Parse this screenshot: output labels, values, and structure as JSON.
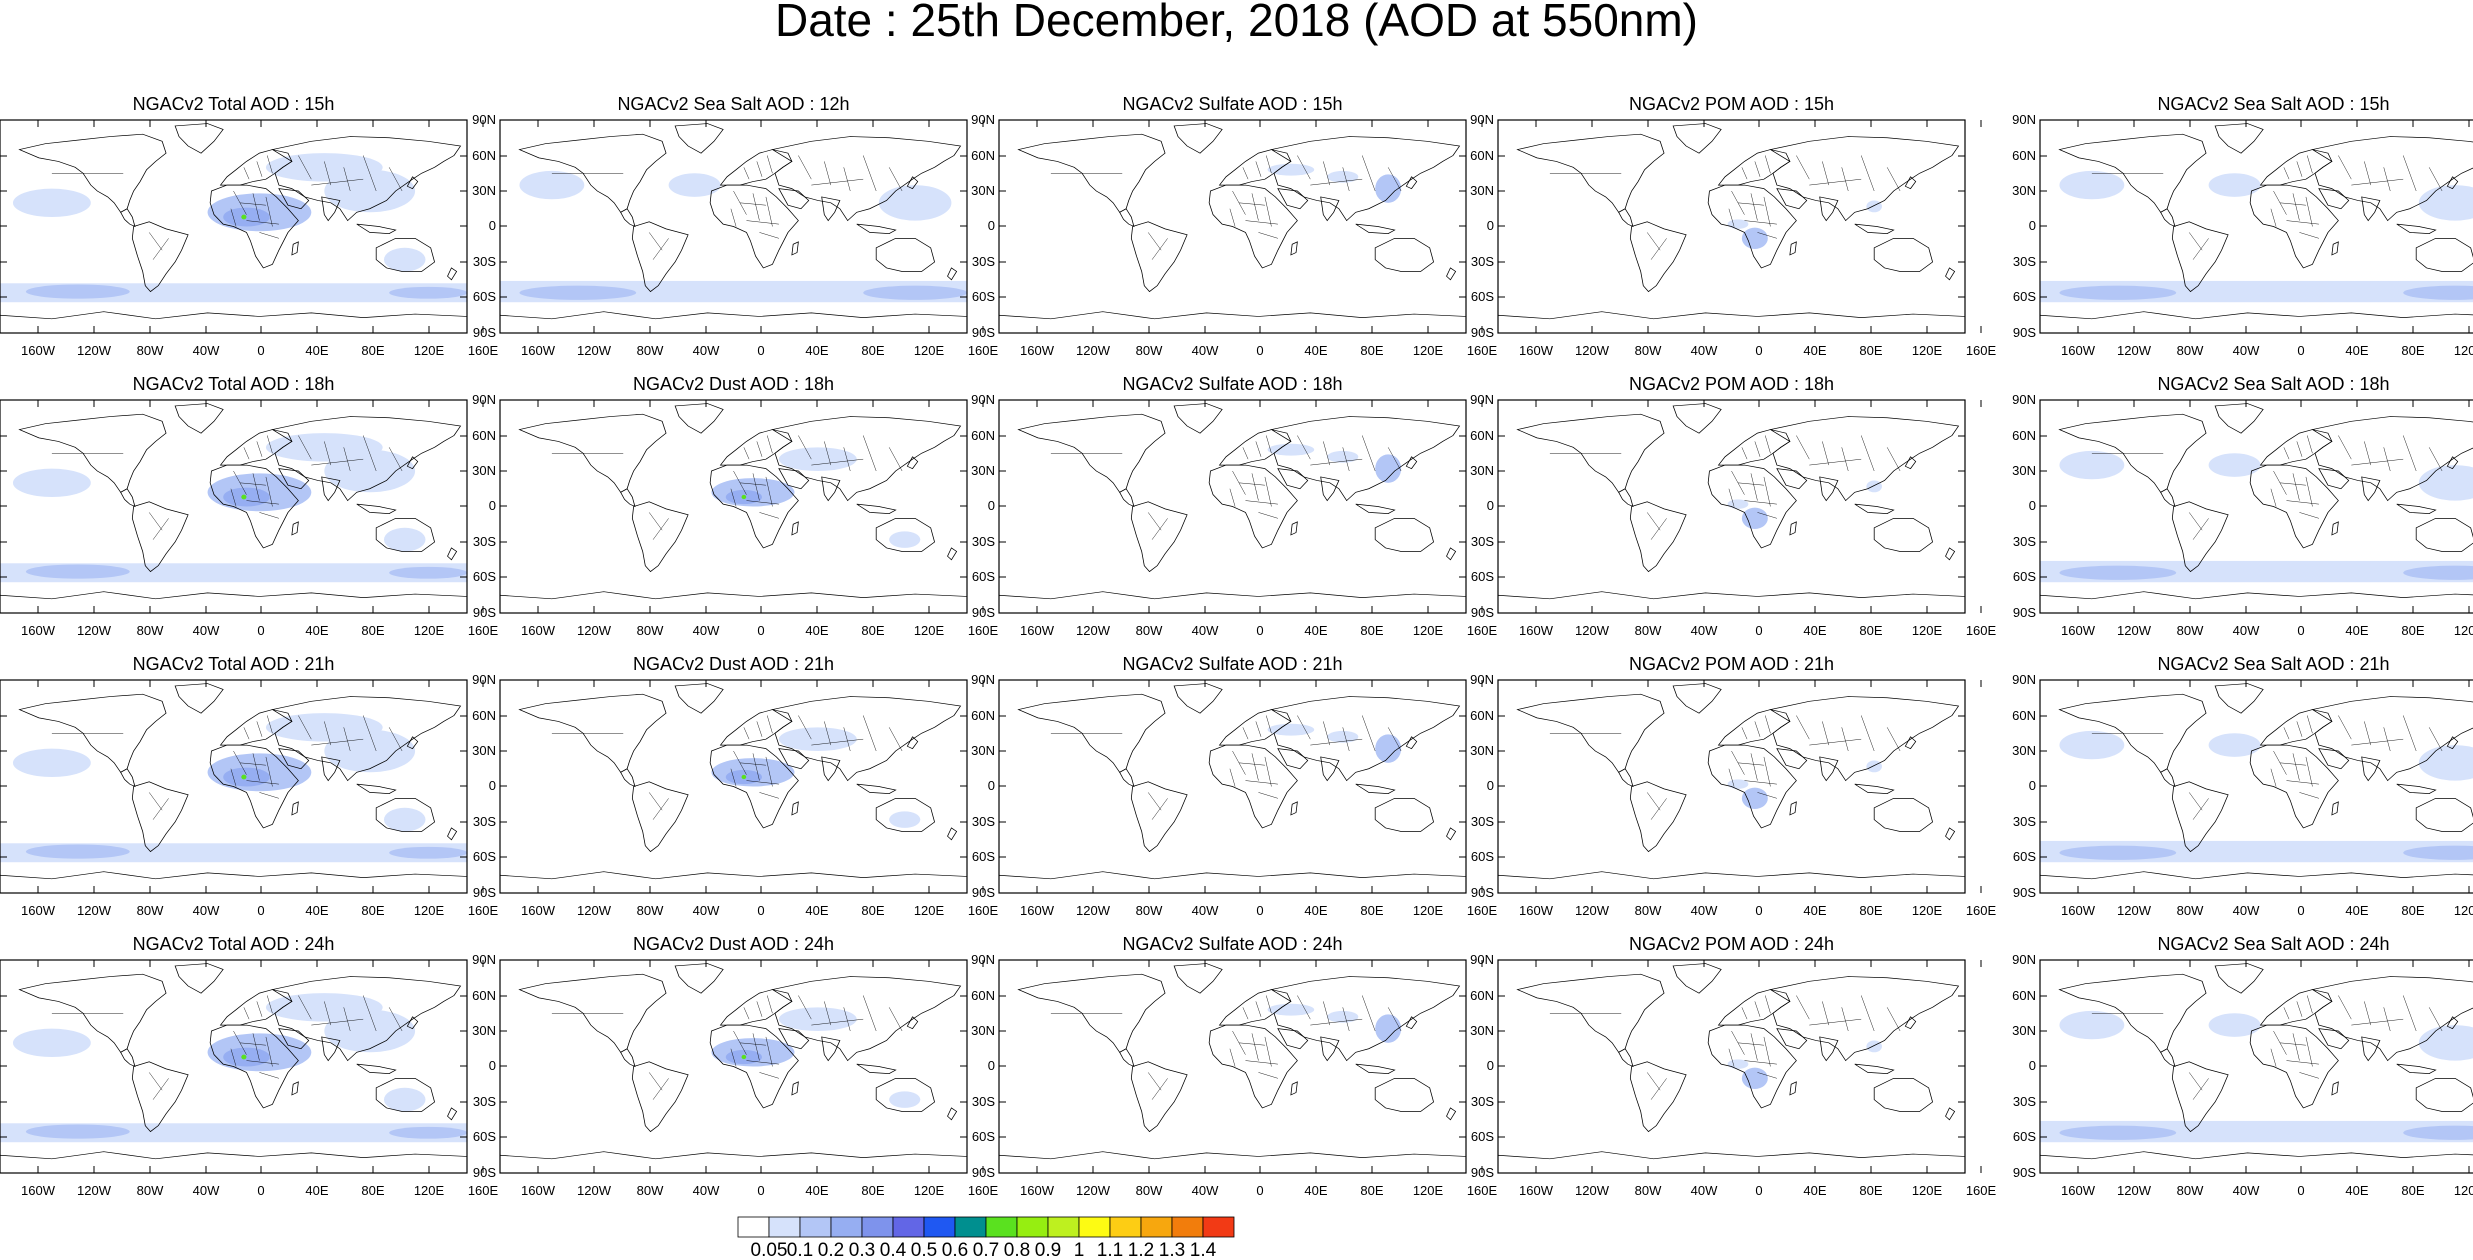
{
  "title": "Date : 25th December, 2018 (AOD at 550nm)",
  "panels": [
    [
      "NGACv2 Total AOD : 15h",
      "NGACv2 Sea Salt  AOD : 12h",
      "NGACv2 Sulfate AOD : 15h",
      "NGACv2 POM AOD : 15h",
      "NGACv2 Sea Salt AOD : 15h"
    ],
    [
      "NGACv2 Total AOD : 18h",
      "NGACv2 Dust AOD : 18h",
      "NGACv2 Sulfate AOD : 18h",
      "NGACv2 POM AOD : 18h",
      "NGACv2 Sea Salt AOD : 18h"
    ],
    [
      "NGACv2 Total AOD : 21h",
      "NGACv2 Dust AOD : 21h",
      "NGACv2 Sulfate AOD : 21h",
      "NGACv2 POM AOD : 21h",
      "NGACv2 Sea Salt AOD : 21h"
    ],
    [
      "NGACv2 Total AOD : 24h",
      "NGACv2 Dust AOD : 24h",
      "NGACv2 Sulfate AOD : 24h",
      "NGACv2 POM AOD : 24h",
      "NGACv2 Sea Salt  AOD : 24h"
    ]
  ],
  "lat_ticks": [
    "90N",
    "60N",
    "30N",
    "0",
    "30S",
    "60S",
    "90S"
  ],
  "lon_ticks": [
    "160W",
    "120W",
    "80W",
    "40W",
    "0",
    "40E",
    "80E",
    "120E",
    "160E"
  ],
  "colorbar": {
    "labels": [
      "0.05",
      "0.1",
      "0.2",
      "0.3",
      "0.4",
      "0.5",
      "0.6",
      "0.7",
      "0.8",
      "0.9",
      "1",
      "1.1",
      "1.2",
      "1.3",
      "1.4"
    ],
    "colors": [
      "#ffffff",
      "#d6e2fb",
      "#b3c6f6",
      "#96aef2",
      "#7e93ec",
      "#6266e6",
      "#1f58f2",
      "#008f8f",
      "#5ae11f",
      "#96ee11",
      "#bef01f",
      "#fdfb13",
      "#fdcd14",
      "#f7a70e",
      "#f27d0c",
      "#f23a15"
    ]
  },
  "colors": {
    "land_outline": "#000000",
    "aerosol_light": "#d6e2fb",
    "aerosol_medium": "#b3c6f6",
    "aerosol_strong": "#96aef2",
    "aerosol_peak": "#5ae11f"
  }
}
